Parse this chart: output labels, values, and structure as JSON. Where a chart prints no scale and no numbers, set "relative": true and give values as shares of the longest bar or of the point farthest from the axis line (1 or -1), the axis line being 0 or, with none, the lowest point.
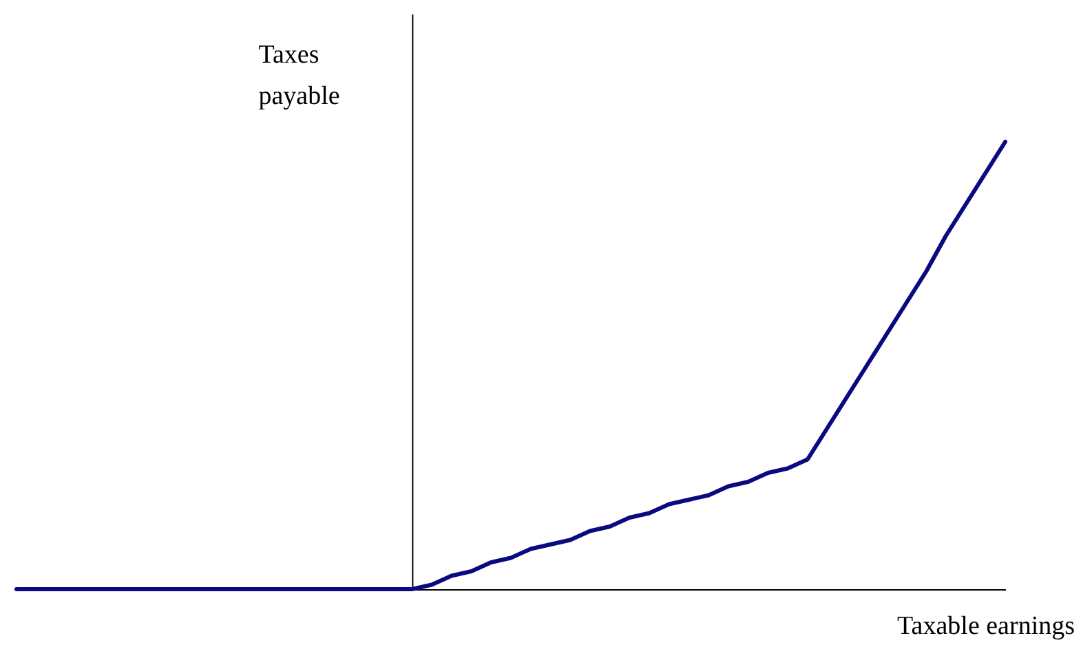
{
  "chart_data": {
    "type": "line",
    "relative": true,
    "xlabel": "Taxable earnings",
    "ylabel": "Taxes payable",
    "categories": [
      null,
      null,
      null,
      null,
      null,
      null,
      null,
      null,
      null,
      null,
      null,
      null,
      null,
      null,
      null,
      null,
      null,
      null,
      null,
      null,
      null,
      null,
      null,
      null,
      null,
      null,
      null,
      null,
      null,
      null,
      null,
      null,
      null,
      null,
      null,
      null,
      null,
      null,
      null,
      null,
      null,
      null,
      null,
      null,
      null,
      null,
      null,
      null,
      null,
      null,
      null
    ],
    "series": [
      {
        "color": "#0a0a80",
        "values": [
          0,
          0,
          0,
          0,
          0,
          0,
          0,
          0,
          0,
          0,
          0,
          0,
          0,
          0,
          0,
          0,
          0,
          0,
          0,
          0,
          0,
          0.01,
          0.03,
          0.04,
          0.06,
          0.07,
          0.09,
          0.1,
          0.11,
          0.13,
          0.14,
          0.16,
          0.17,
          0.19,
          0.2,
          0.21,
          0.23,
          0.24,
          0.26,
          0.27,
          0.29,
          0.36,
          0.43,
          0.5,
          0.57,
          0.64,
          0.71,
          0.79,
          0.86,
          0.93,
          1
        ]
      }
    ],
    "line_style": "solid"
  }
}
